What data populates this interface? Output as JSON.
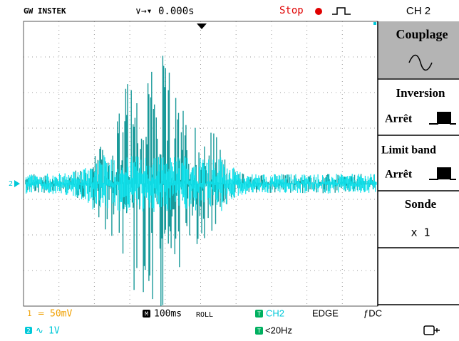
{
  "header": {
    "brand": "GW INSTEK",
    "trigger_arrows": "∨→▾",
    "trigger_position": "0.000s",
    "status": "Stop",
    "channel": "CH 2"
  },
  "marker": "2",
  "menu": {
    "items": [
      {
        "label": "Couplage"
      },
      {
        "label": "Inversion",
        "setting": "Arrêt"
      },
      {
        "label": "Limit band",
        "setting": "Arrêt"
      },
      {
        "label": "Sonde",
        "setting": "x 1"
      }
    ]
  },
  "footer": {
    "ch1_label": "1",
    "ch1_coupling": "═",
    "ch1_scale": "50mV",
    "ch2_label": "2",
    "ch2_coupling": "∿",
    "ch2_scale": "1V",
    "timebase_label": "M",
    "timebase": "100ms",
    "mode": "ROLL",
    "trigger_label": "T",
    "trigger_source": "CH2",
    "trigger_type": "EDGE",
    "trigger_coupling": "ƒDC",
    "filter_label": "T",
    "filter": "<20Hz"
  }
}
